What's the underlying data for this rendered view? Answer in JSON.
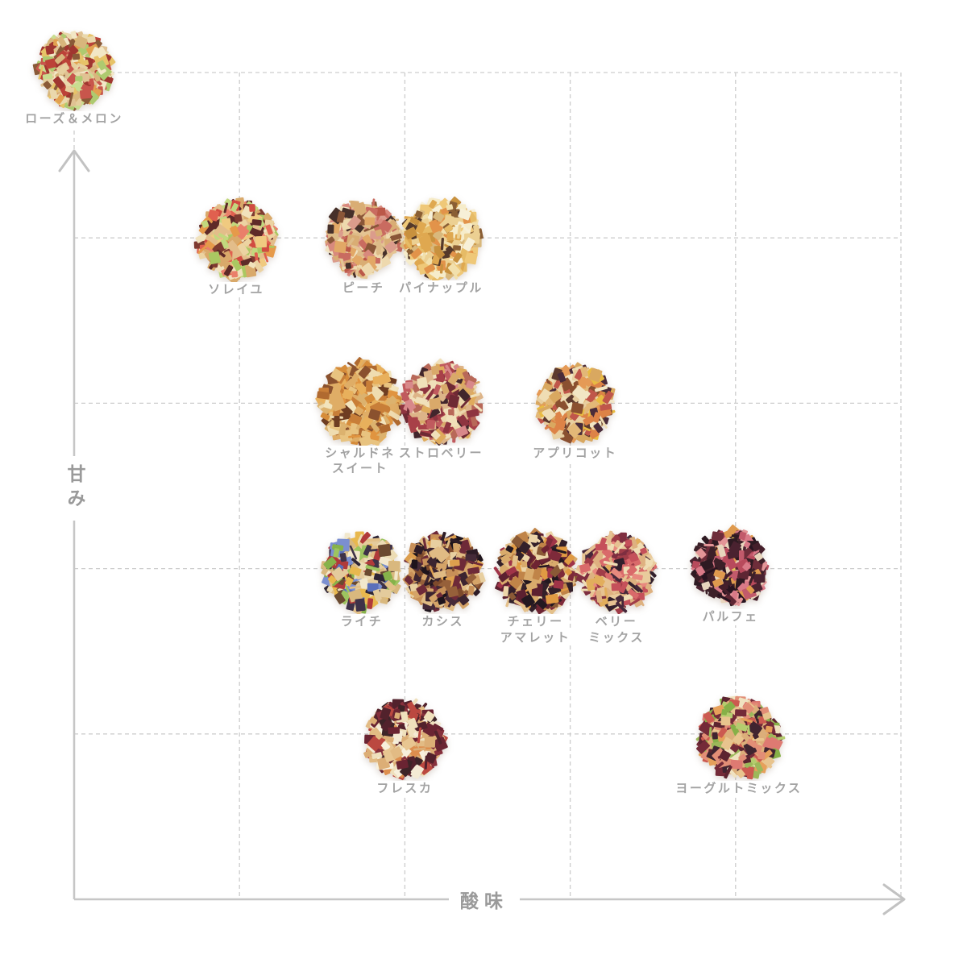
{
  "page": {
    "background": "#ffffff"
  },
  "colors": {
    "grid": "#cdcdcd",
    "axis": "#c6c6c6",
    "arrow": "#c2c2c2",
    "item_label_text": "#a3a3a3",
    "axis_label_text": "#9a9a9a"
  },
  "chart_data": {
    "type": "scatter",
    "title": "",
    "xlabel": "酸味",
    "ylabel": "甘み",
    "x_axis": {
      "label": "酸味",
      "min": 0,
      "max": 5,
      "gridlines": 6,
      "numeric_ticks": "none"
    },
    "y_axis": {
      "label": "甘み",
      "min": 0,
      "max": 5,
      "gridlines": 6,
      "numeric_ticks": "none"
    },
    "grid": "dashed",
    "legend": "none",
    "points": [
      {
        "label": "ローズ＆メロン",
        "label_lines": [
          "ローズ＆メロン"
        ],
        "x": 0.0,
        "y": 5.02
      },
      {
        "label": "ソレイユ",
        "label_lines": [
          "ソレイユ"
        ],
        "x": 0.98,
        "y": 3.99
      },
      {
        "label": "ピーチ",
        "label_lines": [
          "ピーチ"
        ],
        "x": 1.75,
        "y": 4.0
      },
      {
        "label": "パイナップル",
        "label_lines": [
          "パイナップル"
        ],
        "x": 2.22,
        "y": 4.0
      },
      {
        "label": "シャルドネスイート",
        "label_lines": [
          "シャルドネ",
          "スイート"
        ],
        "x": 1.73,
        "y": 3.0
      },
      {
        "label": "ストロベリー",
        "label_lines": [
          "ストロベリー"
        ],
        "x": 2.22,
        "y": 3.0
      },
      {
        "label": "アプリコット",
        "label_lines": [
          "アプリコット"
        ],
        "x": 3.03,
        "y": 3.0
      },
      {
        "label": "ライチ",
        "label_lines": [
          "ライチ"
        ],
        "x": 1.74,
        "y": 1.98
      },
      {
        "label": "カシス",
        "label_lines": [
          "カシス"
        ],
        "x": 2.23,
        "y": 1.98
      },
      {
        "label": "チェリーアマレット",
        "label_lines": [
          "チェリー",
          "アマレット"
        ],
        "x": 2.79,
        "y": 1.98
      },
      {
        "label": "ベリーミックス",
        "label_lines": [
          "ベリー",
          "ミックス"
        ],
        "x": 3.28,
        "y": 1.98
      },
      {
        "label": "パルフェ",
        "label_lines": [
          "パルフェ"
        ],
        "x": 3.97,
        "y": 2.01
      },
      {
        "label": "フレスカ",
        "label_lines": [
          "フレスカ"
        ],
        "x": 2.0,
        "y": 0.97
      },
      {
        "label": "ヨーグルトミックス",
        "label_lines": [
          "ヨーグルトミックス"
        ],
        "x": 4.02,
        "y": 0.97
      }
    ]
  },
  "balls": [
    {
      "id": "rose-melon",
      "size": 97,
      "palette": [
        "#e0c293",
        "#ead8ac",
        "#f2e7c6",
        "#d8b67c",
        "#c9dd90",
        "#aeca70",
        "#bc4238",
        "#c8564c",
        "#e7c368",
        "#e2a150",
        "#8a5a38",
        "#a03630",
        "#e6cf9e"
      ]
    },
    {
      "id": "soleil",
      "size": 100,
      "palette": [
        "#e3bd8a",
        "#ecd3a2",
        "#f1e2bc",
        "#d9a96a",
        "#e0604f",
        "#d14b41",
        "#ea7f6a",
        "#aac862",
        "#e69a4a",
        "#7e3a30",
        "#5e2a28",
        "#f0ca80",
        "#c2d87e"
      ]
    },
    {
      "id": "peach",
      "size": 98,
      "palette": [
        "#e5c493",
        "#eed9ae",
        "#d9ad74",
        "#d8897d",
        "#c96b60",
        "#bb5848",
        "#f0e2c0",
        "#46302a",
        "#8a5638",
        "#e2a866",
        "#db9c8c",
        "#ddbb88"
      ]
    },
    {
      "id": "pineapple",
      "size": 102,
      "palette": [
        "#ecd092",
        "#f2e0ac",
        "#f6ecca",
        "#e6bb66",
        "#dfa850",
        "#d9b87c",
        "#54392a",
        "#8a5e34",
        "#efc878",
        "#e2934a",
        "#f7f0d8",
        "#c8913e"
      ]
    },
    {
      "id": "chardonnay-sweet",
      "size": 108,
      "palette": [
        "#dfad66",
        "#d68c3a",
        "#e8b05c",
        "#8a512e",
        "#6e3d22",
        "#efdcb0",
        "#dcb26e",
        "#e09440",
        "#b06a30",
        "#f2e4bc",
        "#c87e38",
        "#e8c380"
      ]
    },
    {
      "id": "strawberry",
      "size": 104,
      "palette": [
        "#ddb488",
        "#8e3440",
        "#a84048",
        "#d8888a",
        "#ecd7ac",
        "#d9a96a",
        "#42262c",
        "#dfab5c",
        "#c05a5e",
        "#f0e0ba",
        "#6e2a34",
        "#b86858"
      ]
    },
    {
      "id": "apricot",
      "size": 98,
      "palette": [
        "#e8cfa0",
        "#efddb4",
        "#e3b877",
        "#e59a56",
        "#dd8347",
        "#e8bb42",
        "#5e3a2e",
        "#4a2c3a",
        "#c0564a",
        "#f2e6c4",
        "#d9a860",
        "#8a5030"
      ]
    },
    {
      "id": "lychee",
      "size": 98,
      "palette": [
        "#e4cb9c",
        "#ecdcb4",
        "#d9b87e",
        "#5a6fba",
        "#7b8fd0",
        "#9dc45f",
        "#86b24a",
        "#2e2535",
        "#b03a3a",
        "#f2e8cc",
        "#e8b84e",
        "#6a4a30",
        "#3e3248",
        "#e2c088"
      ]
    },
    {
      "id": "cassis",
      "size": 100,
      "palette": [
        "#d5a468",
        "#e0bb84",
        "#96603a",
        "#2e1c26",
        "#452a38",
        "#6e2a38",
        "#e8cfa0",
        "#dd9f4e",
        "#1e141c",
        "#7e4a2c",
        "#c89058",
        "#3c2430"
      ]
    },
    {
      "id": "cherry-amaretto",
      "size": 104,
      "palette": [
        "#d9ab6c",
        "#e4c08a",
        "#8a5a36",
        "#5c2030",
        "#7e2a3a",
        "#33202a",
        "#e09a43",
        "#ecd5a8",
        "#a03448",
        "#241820",
        "#c08448",
        "#6e2432"
      ]
    },
    {
      "id": "berry-mix",
      "size": 100,
      "palette": [
        "#deb180",
        "#e9cb9c",
        "#e8897e",
        "#c5505a",
        "#32202c",
        "#efddb4",
        "#7e2e40",
        "#e2ae5c",
        "#d96a6a",
        "#46283a",
        "#a03c48",
        "#e6c292"
      ]
    },
    {
      "id": "parfait",
      "size": 97,
      "palette": [
        "#3c2028",
        "#2e1a22",
        "#451f2b",
        "#5e2633",
        "#6e2d3a",
        "#d97a88",
        "#e39597",
        "#b84a5c",
        "#e3c55a",
        "#df9a4e",
        "#e8d5bc",
        "#281420",
        "#c25a6b",
        "#4a2230"
      ]
    },
    {
      "id": "fresca",
      "size": 102,
      "palette": [
        "#dcae76",
        "#e8c691",
        "#f4ead4",
        "#efe0bc",
        "#6a2432",
        "#86303c",
        "#dd8e4e",
        "#bb4840",
        "#3e2428",
        "#e2bb84",
        "#52222c",
        "#f7f0dc"
      ]
    },
    {
      "id": "yogurt-mix",
      "size": 104,
      "palette": [
        "#dcae7a",
        "#e8c48e",
        "#9cb85a",
        "#b4cc6e",
        "#e28e76",
        "#cc5a50",
        "#742a38",
        "#402430",
        "#f0e2c0",
        "#de7a72",
        "#86b048",
        "#5c2430",
        "#e6a05a"
      ]
    }
  ]
}
